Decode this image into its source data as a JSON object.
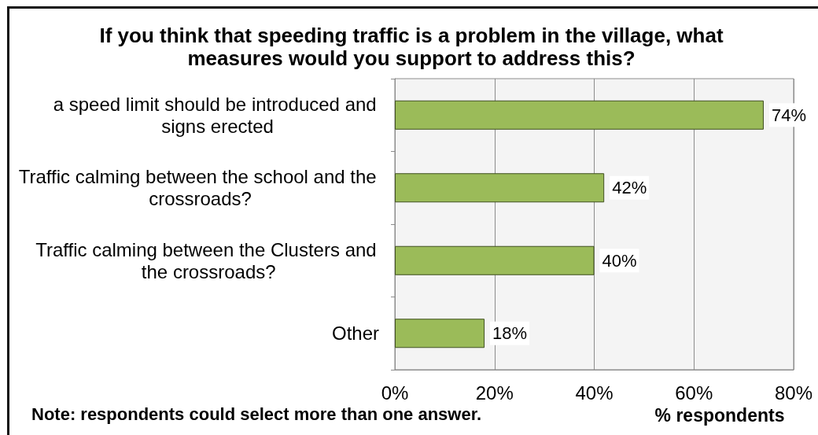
{
  "chart_data": {
    "type": "bar",
    "orientation": "horizontal",
    "title": "If you think that speeding traffic is a problem in the village, what measures would you support to address this?",
    "xlabel": "% respondents",
    "annotations": [
      "Note: respondents could select more than one answer."
    ],
    "categories": [
      "a speed limit should be introduced and signs erected",
      "Traffic calming between the school and the crossroads?",
      "Traffic calming between the Clusters and the crossroads?",
      "Other"
    ],
    "values": [
      74,
      42,
      40,
      18
    ],
    "value_labels": [
      "74%",
      "42%",
      "40%",
      "18%"
    ],
    "color": "#9bbb59",
    "xlim": [
      0,
      80
    ],
    "xticks": [
      {
        "value": 0,
        "label": "0%"
      },
      {
        "value": 20,
        "label": "20%"
      },
      {
        "value": 40,
        "label": "40%"
      },
      {
        "value": 60,
        "label": "60%"
      },
      {
        "value": 80,
        "label": "80%"
      }
    ],
    "grid": "x"
  }
}
